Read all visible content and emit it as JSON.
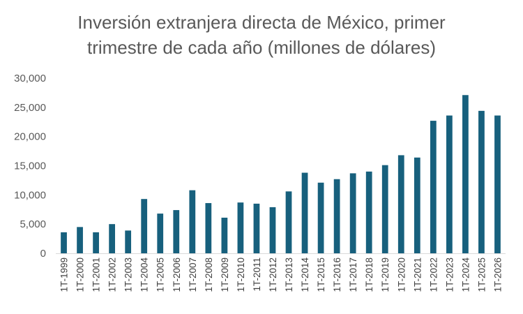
{
  "chart_data": {
    "type": "bar",
    "title_line1": "Inversión extranjera directa de México, primer",
    "title_line2": "trimestre de cada año (millones de dólares)",
    "categories": [
      "1T-1999",
      "1T-2000",
      "1T-2001",
      "1T-2002",
      "1T-2003",
      "1T-2004",
      "1T-2005",
      "1T-2006",
      "1T-2007",
      "1T-2008",
      "1T-2009",
      "1T-2010",
      "1T-2011",
      "1T-2012",
      "1T-2013",
      "1T-2014",
      "1T-2015",
      "1T-2016",
      "1T-2017",
      "1T-2018",
      "1T-2019",
      "1T-2020",
      "1T-2021",
      "1T-2022",
      "1T-2023",
      "1T-2024",
      "1T-2025",
      "1T-2026"
    ],
    "values": [
      3600,
      4500,
      3600,
      5000,
      3900,
      9300,
      6800,
      7400,
      10800,
      8600,
      6100,
      8700,
      8500,
      7900,
      10600,
      13800,
      12100,
      12700,
      13700,
      14000,
      15100,
      16800,
      16400,
      22700,
      23600,
      27100,
      24400,
      23600
    ],
    "yticks": [
      "0",
      "5,000",
      "10,000",
      "15,000",
      "20,000",
      "25,000",
      "30,000"
    ],
    "ylim": [
      0,
      30000
    ],
    "xlabel": "",
    "ylabel": "",
    "grid": false,
    "bar_color": "#17607D"
  }
}
